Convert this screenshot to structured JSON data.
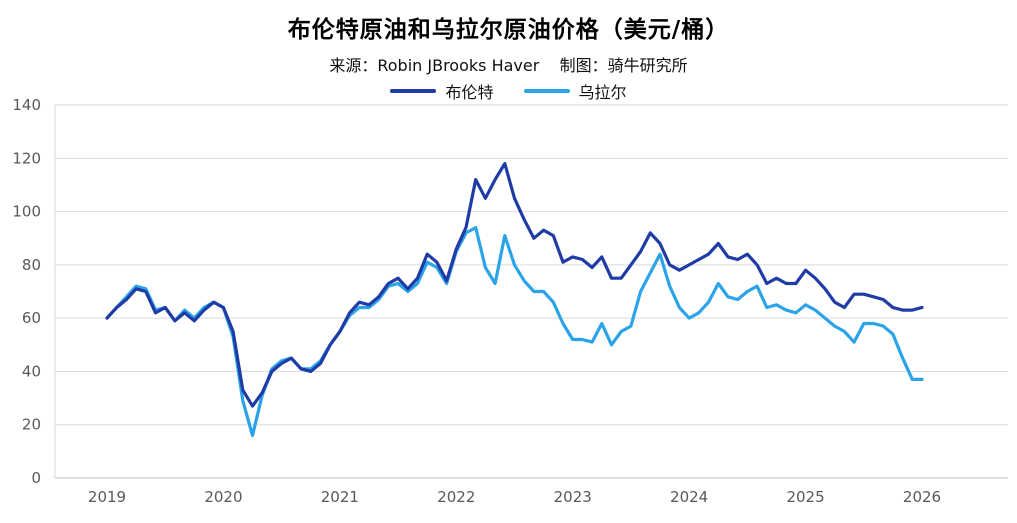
{
  "chart_data": {
    "type": "line",
    "title": "布伦特原油和乌拉尔原油价格（美元/桶）",
    "subtitle": "来源：Robin JBrooks Haver    制图：骑牛研究所",
    "x_unit": "month",
    "x_start": "2019-01",
    "x_end": "2026-01",
    "xticks": [
      "2019",
      "2020",
      "2021",
      "2022",
      "2023",
      "2024",
      "2025",
      "2026"
    ],
    "yticks": [
      0,
      20,
      40,
      60,
      80,
      100,
      120,
      140
    ],
    "ylim": [
      0,
      140
    ],
    "grid": "horizontal",
    "legend_position": "top-center",
    "axis_text_color": "#595959",
    "grid_color": "#d9d9d9",
    "axis_line_color": "#bfbfbf",
    "series": [
      {
        "name": "布伦特",
        "color": "#1F3BA6",
        "values": [
          60,
          64,
          67,
          71,
          70,
          62,
          64,
          59,
          62,
          59,
          63,
          66,
          64,
          55,
          33,
          27,
          32,
          40,
          43,
          45,
          41,
          40,
          43,
          50,
          55,
          62,
          66,
          65,
          68,
          73,
          75,
          71,
          75,
          84,
          81,
          74,
          86,
          94,
          112,
          105,
          112,
          118,
          105,
          97,
          90,
          93,
          91,
          81,
          83,
          82,
          79,
          83,
          75,
          75,
          80,
          85,
          92,
          88,
          80,
          78,
          80,
          82,
          84,
          88,
          83,
          82,
          84,
          80,
          73,
          75,
          73,
          73,
          78,
          75,
          71,
          66,
          64,
          69,
          69,
          68,
          67,
          64,
          63,
          63,
          64
        ]
      },
      {
        "name": "乌拉尔",
        "color": "#2BA3E8",
        "values": [
          60,
          64,
          68,
          72,
          71,
          63,
          64,
          59,
          63,
          60,
          64,
          66,
          64,
          53,
          29,
          16,
          31,
          41,
          44,
          45,
          41,
          41,
          44,
          50,
          55,
          61,
          64,
          64,
          67,
          72,
          73,
          70,
          73,
          81,
          79,
          73,
          85,
          92,
          94,
          79,
          73,
          91,
          80,
          74,
          70,
          70,
          66,
          58,
          52,
          52,
          51,
          58,
          50,
          55,
          57,
          70,
          77,
          84,
          72,
          64,
          60,
          62,
          66,
          73,
          68,
          67,
          70,
          72,
          64,
          65,
          63,
          62,
          65,
          63,
          60,
          57,
          55,
          51,
          58,
          58,
          57,
          54,
          45,
          37,
          37
        ]
      }
    ]
  }
}
